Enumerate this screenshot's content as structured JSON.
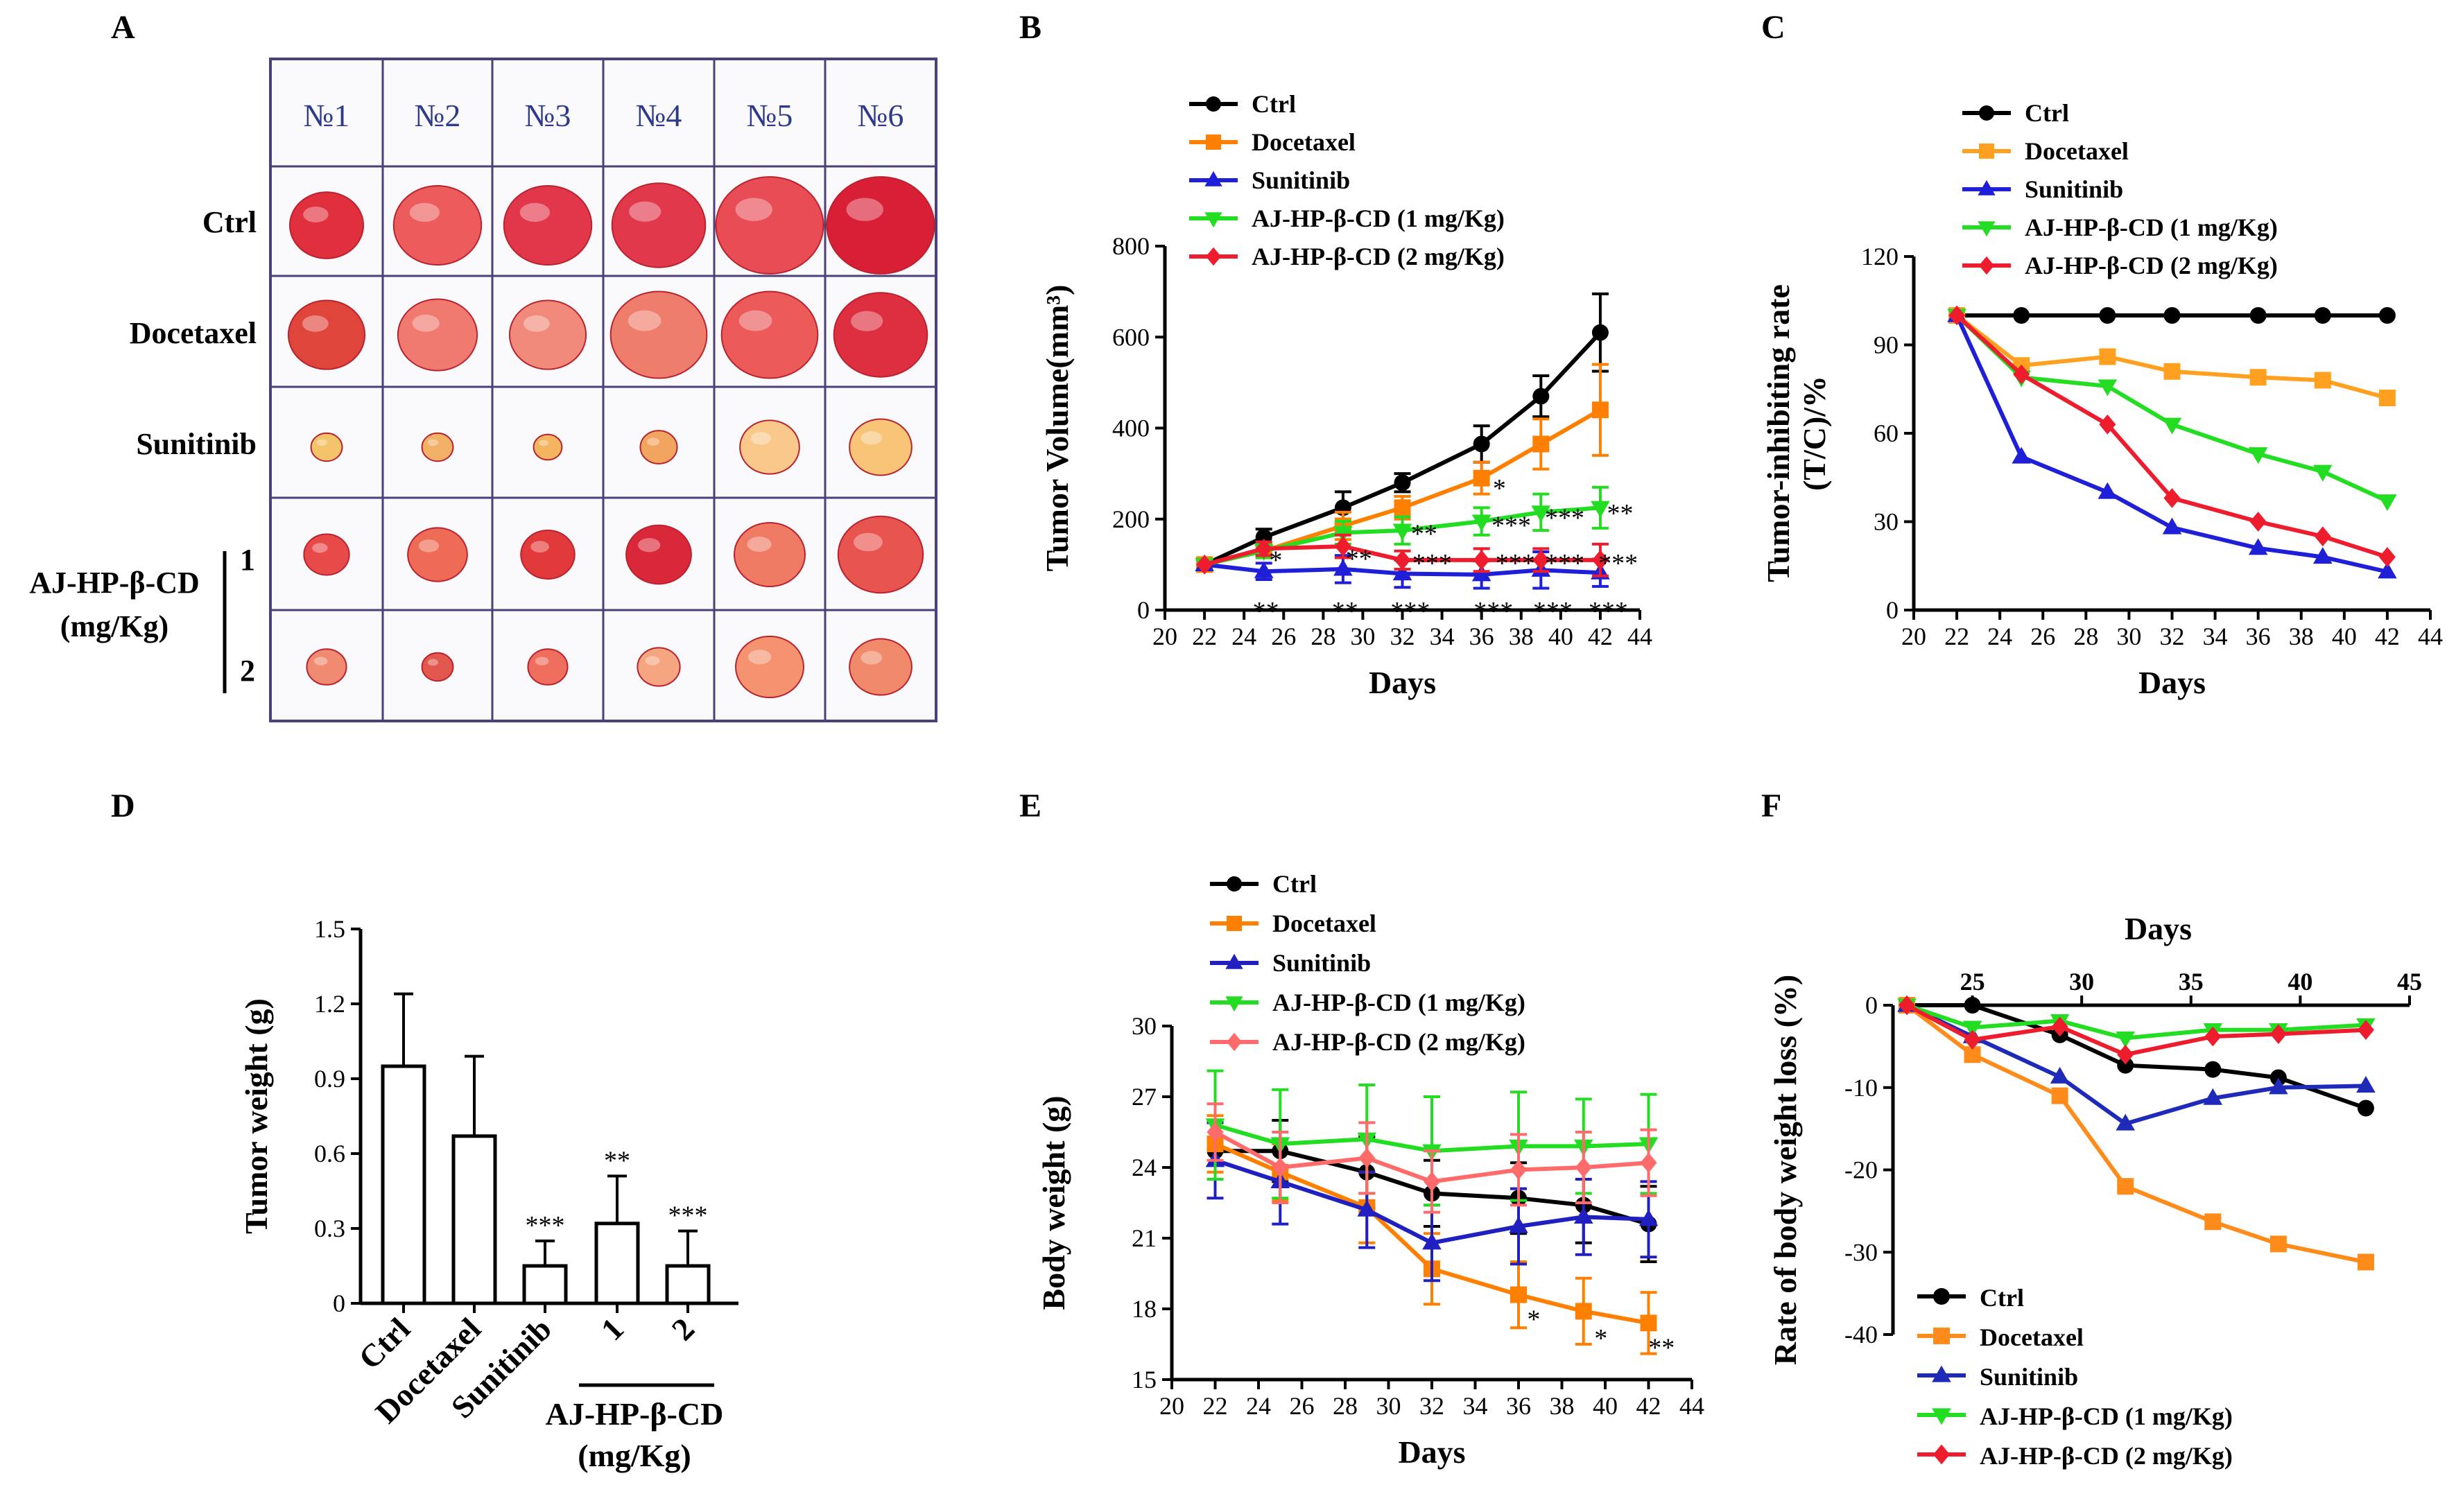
{
  "panels": {
    "A": "A",
    "B": "B",
    "C": "C",
    "D": "D",
    "E": "E",
    "F": "F"
  },
  "colors": {
    "Ctrl": "#000000",
    "Docetaxel": "#ff8000",
    "Sunitinib": "#1f1fd8",
    "AJ1": "#22dd22",
    "AJ2": "#ee1d2d",
    "AJ2b": "#ff6a6a"
  },
  "panelA": {
    "columns": [
      "№1",
      "№2",
      "№3",
      "№4",
      "№5",
      "№6"
    ],
    "rows": [
      "Ctrl",
      "Docetaxel",
      "Sunitinib"
    ],
    "group_label_1": "AJ-HP-β-CD",
    "group_label_2": "(mg/Kg)",
    "dose_1": "1",
    "dose_2": "2"
  },
  "legend": [
    "Ctrl",
    "Docetaxel",
    "Sunitinib",
    "AJ-HP-β-CD (1 mg/Kg)",
    "AJ-HP-β-CD (2 mg/Kg)"
  ],
  "chart_data": [
    {
      "id": "B",
      "type": "line",
      "xlabel": "Days",
      "ylabel": "Tumor  Volume(mm³)",
      "x_ticks": [
        20,
        22,
        24,
        26,
        28,
        30,
        32,
        34,
        36,
        38,
        40,
        42,
        44
      ],
      "xlim": [
        20,
        44
      ],
      "ylim": [
        0,
        800
      ],
      "y_ticks": [
        0,
        200,
        400,
        600,
        800
      ],
      "x": [
        22,
        25,
        29,
        32,
        36,
        39,
        42
      ],
      "series": [
        {
          "name": "Ctrl",
          "values": [
            100,
            160,
            225,
            280,
            365,
            470,
            610
          ],
          "err": [
            0,
            18,
            35,
            20,
            40,
            45,
            85
          ]
        },
        {
          "name": "Docetaxel",
          "values": [
            100,
            130,
            185,
            225,
            290,
            365,
            440
          ],
          "err": [
            0,
            15,
            30,
            25,
            35,
            55,
            100
          ]
        },
        {
          "name": "Sunitinib",
          "values": [
            100,
            85,
            90,
            80,
            78,
            88,
            82
          ],
          "err": [
            0,
            18,
            30,
            30,
            30,
            40,
            30
          ]
        },
        {
          "name": "AJ-HP-β-CD (1 mg/Kg)",
          "values": [
            100,
            130,
            170,
            175,
            195,
            215,
            225
          ],
          "err": [
            0,
            15,
            25,
            30,
            30,
            40,
            45
          ]
        },
        {
          "name": "AJ-HP-β-CD (2 mg/Kg)",
          "values": [
            100,
            135,
            140,
            110,
            110,
            110,
            110
          ],
          "err": [
            0,
            15,
            25,
            20,
            25,
            25,
            35
          ]
        }
      ],
      "annotations": [
        {
          "x": 25.1,
          "y": 0,
          "text": "**"
        },
        {
          "x": 29.1,
          "y": 0,
          "text": "**"
        },
        {
          "x": 32.4,
          "y": 0,
          "text": "***"
        },
        {
          "x": 36.6,
          "y": 0,
          "text": "***"
        },
        {
          "x": 39.6,
          "y": 0,
          "text": "***"
        },
        {
          "x": 42.4,
          "y": 0,
          "text": "***"
        },
        {
          "x": 25.6,
          "y": 112,
          "text": "*"
        },
        {
          "x": 29.8,
          "y": 115,
          "text": "**"
        },
        {
          "x": 33.5,
          "y": 105,
          "text": "***"
        },
        {
          "x": 37.7,
          "y": 105,
          "text": "***"
        },
        {
          "x": 40.2,
          "y": 105,
          "text": "***"
        },
        {
          "x": 42.9,
          "y": 105,
          "text": "***"
        },
        {
          "x": 33.1,
          "y": 170,
          "text": "**"
        },
        {
          "x": 37.5,
          "y": 188,
          "text": "***"
        },
        {
          "x": 40.2,
          "y": 205,
          "text": "***"
        },
        {
          "x": 43.0,
          "y": 215,
          "text": "**"
        },
        {
          "x": 36.9,
          "y": 270,
          "text": "*"
        }
      ]
    },
    {
      "id": "C",
      "type": "line",
      "xlabel": "Days",
      "ylabel": "Tumor-inhibiting  rate (T/C)/%",
      "x_ticks": [
        20,
        22,
        24,
        26,
        28,
        30,
        32,
        34,
        36,
        38,
        40,
        42,
        44
      ],
      "xlim": [
        20,
        44
      ],
      "ylim": [
        0,
        120
      ],
      "y_ticks": [
        0,
        30,
        60,
        90,
        120
      ],
      "x": [
        22,
        25,
        29,
        32,
        36,
        39,
        42
      ],
      "series": [
        {
          "name": "Ctrl",
          "values": [
            100,
            100,
            100,
            100,
            100,
            100,
            100
          ]
        },
        {
          "name": "Docetaxel",
          "values": [
            100,
            83,
            86,
            81,
            79,
            78,
            72
          ]
        },
        {
          "name": "Sunitinib",
          "values": [
            100,
            52,
            40,
            28,
            21,
            18,
            13
          ]
        },
        {
          "name": "AJ-HP-β-CD (1 mg/Kg)",
          "values": [
            100,
            79,
            76,
            63,
            53,
            47,
            37
          ]
        },
        {
          "name": "AJ-HP-β-CD (2 mg/Kg)",
          "values": [
            100,
            80,
            63,
            38,
            30,
            25,
            18
          ]
        }
      ]
    },
    {
      "id": "D",
      "type": "bar",
      "ylabel": "Tumor weight (g)",
      "categories": [
        "Ctrl",
        "Docetaxel",
        "Sunitinib",
        "1",
        "2"
      ],
      "values": [
        0.95,
        0.67,
        0.15,
        0.32,
        0.15
      ],
      "err": [
        0.29,
        0.32,
        0.1,
        0.19,
        0.14
      ],
      "sig": [
        "",
        "",
        "***",
        "**",
        "***"
      ],
      "ylim": [
        0,
        1.5
      ],
      "y_ticks": [
        "0",
        "0.3",
        "0.6",
        "0.9",
        "1.2",
        "1.5"
      ],
      "group_label": "AJ-HP-β-CD",
      "group_unit": "(mg/Kg)"
    },
    {
      "id": "E",
      "type": "line",
      "xlabel": "Days",
      "ylabel": "Body weight (g)",
      "x_ticks": [
        20,
        22,
        24,
        26,
        28,
        30,
        32,
        34,
        36,
        38,
        40,
        42,
        44
      ],
      "xlim": [
        20,
        44
      ],
      "ylim": [
        15,
        30
      ],
      "y_ticks": [
        15,
        18,
        21,
        24,
        27,
        30
      ],
      "x": [
        22,
        25,
        29,
        32,
        36,
        39,
        42
      ],
      "series": [
        {
          "name": "Ctrl",
          "values": [
            24.7,
            24.7,
            23.8,
            22.9,
            22.7,
            22.4,
            21.6
          ],
          "err": [
            1.2,
            1.3,
            1.5,
            1.4,
            1.5,
            1.6,
            1.6
          ]
        },
        {
          "name": "Docetaxel",
          "values": [
            25.0,
            23.8,
            22.3,
            19.7,
            18.6,
            17.9,
            17.4
          ],
          "err": [
            1.2,
            1.2,
            1.5,
            1.5,
            1.4,
            1.4,
            1.3
          ]
        },
        {
          "name": "Sunitinib",
          "values": [
            24.3,
            23.4,
            22.2,
            20.8,
            21.5,
            21.9,
            21.8
          ],
          "err": [
            1.6,
            1.8,
            1.6,
            1.6,
            1.6,
            1.6,
            1.6
          ]
        },
        {
          "name": "AJ-HP-β-CD (1 mg/Kg)",
          "values": [
            25.8,
            25.0,
            25.2,
            24.7,
            24.9,
            24.9,
            25.0
          ],
          "err": [
            2.3,
            2.3,
            2.3,
            2.3,
            2.3,
            2.0,
            2.1
          ]
        },
        {
          "name": "AJ-HP-β-CD (2 mg/Kg)",
          "values": [
            25.5,
            24.0,
            24.4,
            23.4,
            23.9,
            24.0,
            24.2
          ],
          "err": [
            1.2,
            1.5,
            1.5,
            1.3,
            1.5,
            1.5,
            1.4
          ]
        }
      ],
      "annotations": [
        {
          "x": 36.7,
          "y": 17.6,
          "text": "*"
        },
        {
          "x": 39.8,
          "y": 16.8,
          "text": "*"
        },
        {
          "x": 42.6,
          "y": 16.4,
          "text": "**"
        }
      ]
    },
    {
      "id": "F",
      "type": "line",
      "xlabel": "Days",
      "ylabel": "Rate of body weight loss (%)",
      "x_ticks": [
        25,
        30,
        35,
        40,
        45
      ],
      "xlim": [
        22,
        45
      ],
      "ylim": [
        -40,
        0
      ],
      "y_ticks": [
        0,
        -10,
        -20,
        -30,
        -40
      ],
      "x": [
        22,
        25,
        29,
        32,
        36,
        39,
        43
      ],
      "series": [
        {
          "name": "Ctrl",
          "values": [
            0,
            0,
            -3.6,
            -7.3,
            -7.8,
            -8.8,
            -12.5
          ]
        },
        {
          "name": "Docetaxel",
          "values": [
            0,
            -6,
            -11,
            -22,
            -26.3,
            -29,
            -31.2
          ]
        },
        {
          "name": "Sunitinib",
          "values": [
            0,
            -3.8,
            -8.7,
            -14.4,
            -11.3,
            -10,
            -9.8
          ]
        },
        {
          "name": "AJ-HP-β-CD (1 mg/Kg)",
          "values": [
            0,
            -2.7,
            -1.9,
            -4,
            -3,
            -3,
            -2.4
          ]
        },
        {
          "name": "AJ-HP-β-CD (2 mg/Kg)",
          "values": [
            0,
            -4.2,
            -2.6,
            -6,
            -3.8,
            -3.5,
            -3
          ]
        }
      ]
    }
  ]
}
